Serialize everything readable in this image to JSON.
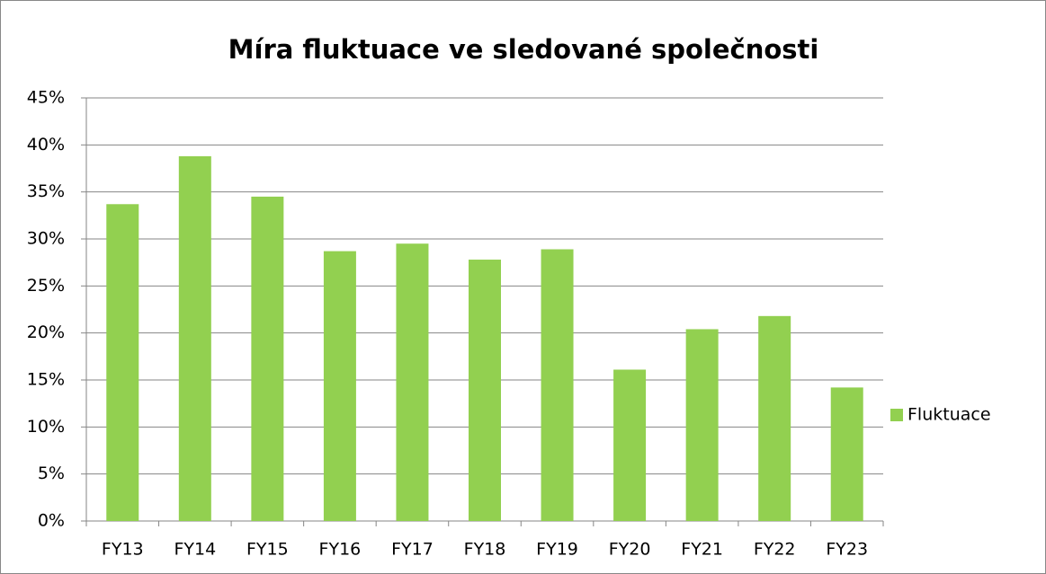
{
  "chart_data": {
    "type": "bar",
    "title": "Míra fluktuace ve sledované společnosti",
    "categories": [
      "FY13",
      "FY14",
      "FY15",
      "FY16",
      "FY17",
      "FY18",
      "FY19",
      "FY20",
      "FY21",
      "FY22",
      "FY23"
    ],
    "series": [
      {
        "name": "Fluktuace",
        "color": "#92d050",
        "values": [
          33.7,
          38.8,
          34.5,
          28.7,
          29.5,
          27.8,
          28.9,
          16.1,
          20.4,
          21.8,
          14.2
        ]
      }
    ],
    "ylim": [
      0,
      45
    ],
    "yticks": [
      {
        "value": 0,
        "label": "0%"
      },
      {
        "value": 5,
        "label": "5%"
      },
      {
        "value": 10,
        "label": "10%"
      },
      {
        "value": 15,
        "label": "15%"
      },
      {
        "value": 20,
        "label": "20%"
      },
      {
        "value": 25,
        "label": "25%"
      },
      {
        "value": 30,
        "label": "30%"
      },
      {
        "value": 35,
        "label": "35%"
      },
      {
        "value": 40,
        "label": "40%"
      },
      {
        "value": 45,
        "label": "45%"
      }
    ],
    "grid": true,
    "legend": "right"
  }
}
